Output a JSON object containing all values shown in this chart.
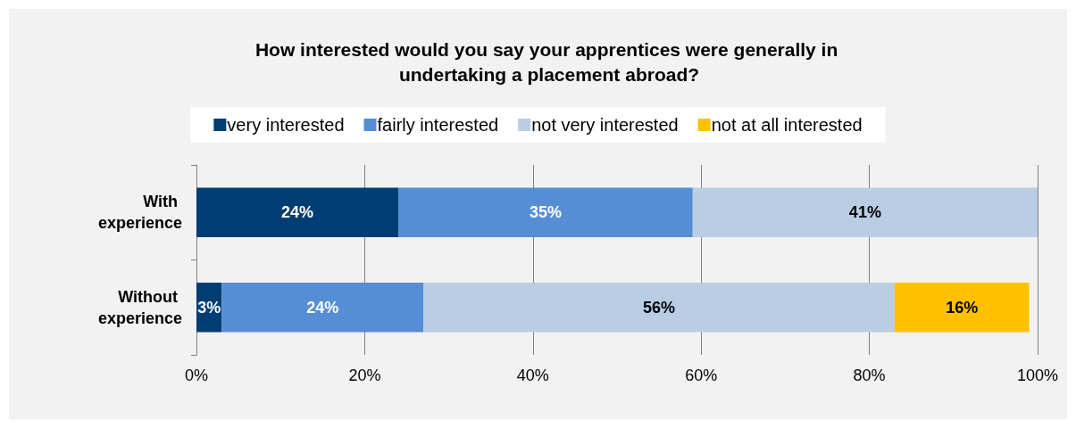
{
  "chart_data": {
    "type": "bar",
    "title": "How interested would you say your apprentices were generally in undertaking a placement abroad?",
    "orientation": "horizontal",
    "stacked": true,
    "categories": [
      "With experience",
      "Without experience"
    ],
    "series": [
      {
        "name": "very interested",
        "color": "#003d73",
        "values": [
          24,
          3
        ],
        "value_labels": [
          "24%",
          "3%"
        ]
      },
      {
        "name": "fairly interested",
        "color": "#558ed5",
        "values": [
          35,
          24
        ],
        "value_labels": [
          "35%",
          "24%"
        ]
      },
      {
        "name": "not very interested",
        "color": "#b9cde5",
        "values": [
          41,
          56
        ],
        "value_labels": [
          "41%",
          "56%"
        ]
      },
      {
        "name": "not at all interested",
        "color": "#ffc000",
        "values": [
          null,
          16
        ],
        "value_labels": [
          null,
          "16%"
        ]
      }
    ],
    "xlim": [
      0,
      100
    ],
    "xticks": [
      {
        "value": 0,
        "label": "0%"
      },
      {
        "value": 20,
        "label": "20%"
      },
      {
        "value": 40,
        "label": "40%"
      },
      {
        "value": 60,
        "label": "60%"
      },
      {
        "value": 80,
        "label": "80%"
      },
      {
        "value": 100,
        "label": "100%"
      }
    ],
    "grid": "x",
    "legend": "top"
  }
}
